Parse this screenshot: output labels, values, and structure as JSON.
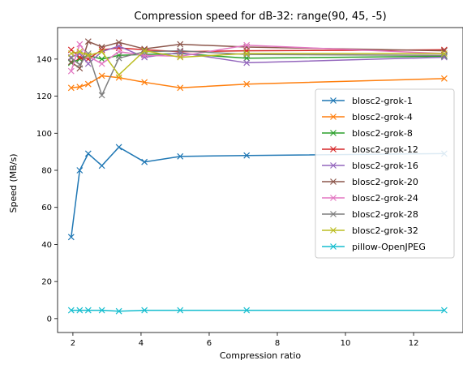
{
  "chart_data": {
    "type": "line",
    "title": "Compression speed for dB-32: range(90, 45, -5)",
    "xlabel": "Compression ratio",
    "ylabel": "Speed (MB/s)",
    "xlim": [
      1.55,
      13.45
    ],
    "ylim": [
      -7.5,
      157
    ],
    "xticks": [
      2,
      4,
      6,
      8,
      10,
      12
    ],
    "yticks": [
      0,
      20,
      40,
      60,
      80,
      100,
      120,
      140
    ],
    "grid": false,
    "legend_position": "center-right",
    "marker": "x",
    "x": [
      1.95,
      2.2,
      2.45,
      2.85,
      3.35,
      4.1,
      5.15,
      7.1,
      12.9
    ],
    "series": [
      {
        "name": "blosc2-grok-1",
        "color": "#1f77b4",
        "values": [
          44,
          80,
          89,
          82.5,
          92.5,
          84.5,
          87.5,
          88,
          89
        ]
      },
      {
        "name": "blosc2-grok-4",
        "color": "#ff7f0e",
        "values": [
          124.5,
          125,
          126.5,
          131,
          130,
          127.5,
          124.5,
          126.5,
          129.5
        ]
      },
      {
        "name": "blosc2-grok-8",
        "color": "#2ca02c",
        "values": [
          138,
          140,
          142,
          140,
          142,
          142.5,
          143,
          140.5,
          141.5
        ]
      },
      {
        "name": "blosc2-grok-12",
        "color": "#d62728",
        "values": [
          145,
          141,
          140,
          145,
          146,
          145,
          144,
          144.5,
          145
        ]
      },
      {
        "name": "blosc2-grok-16",
        "color": "#9467bd",
        "values": [
          141,
          143,
          137.5,
          144,
          147,
          141,
          143.5,
          138,
          141
        ]
      },
      {
        "name": "blosc2-grok-20",
        "color": "#8c564b",
        "values": [
          138.5,
          135,
          149.5,
          146.5,
          149,
          145.5,
          148,
          146.5,
          144.5
        ]
      },
      {
        "name": "blosc2-grok-24",
        "color": "#e377c2",
        "values": [
          133.5,
          148,
          141.5,
          137.5,
          144,
          142,
          141.5,
          147.5,
          143
        ]
      },
      {
        "name": "blosc2-grok-28",
        "color": "#7f7f7f",
        "values": [
          140.5,
          137,
          143,
          120.5,
          140.5,
          144,
          144.5,
          142.5,
          142
        ]
      },
      {
        "name": "blosc2-grok-32",
        "color": "#bcbd22",
        "values": [
          143,
          144,
          142,
          144,
          131.5,
          144.5,
          141,
          143,
          143
        ]
      },
      {
        "name": "pillow-OpenJPEG",
        "color": "#17becf",
        "values": [
          4.5,
          4.5,
          4.5,
          4.5,
          4,
          4.5,
          4.5,
          4.5,
          4.5
        ]
      }
    ]
  }
}
